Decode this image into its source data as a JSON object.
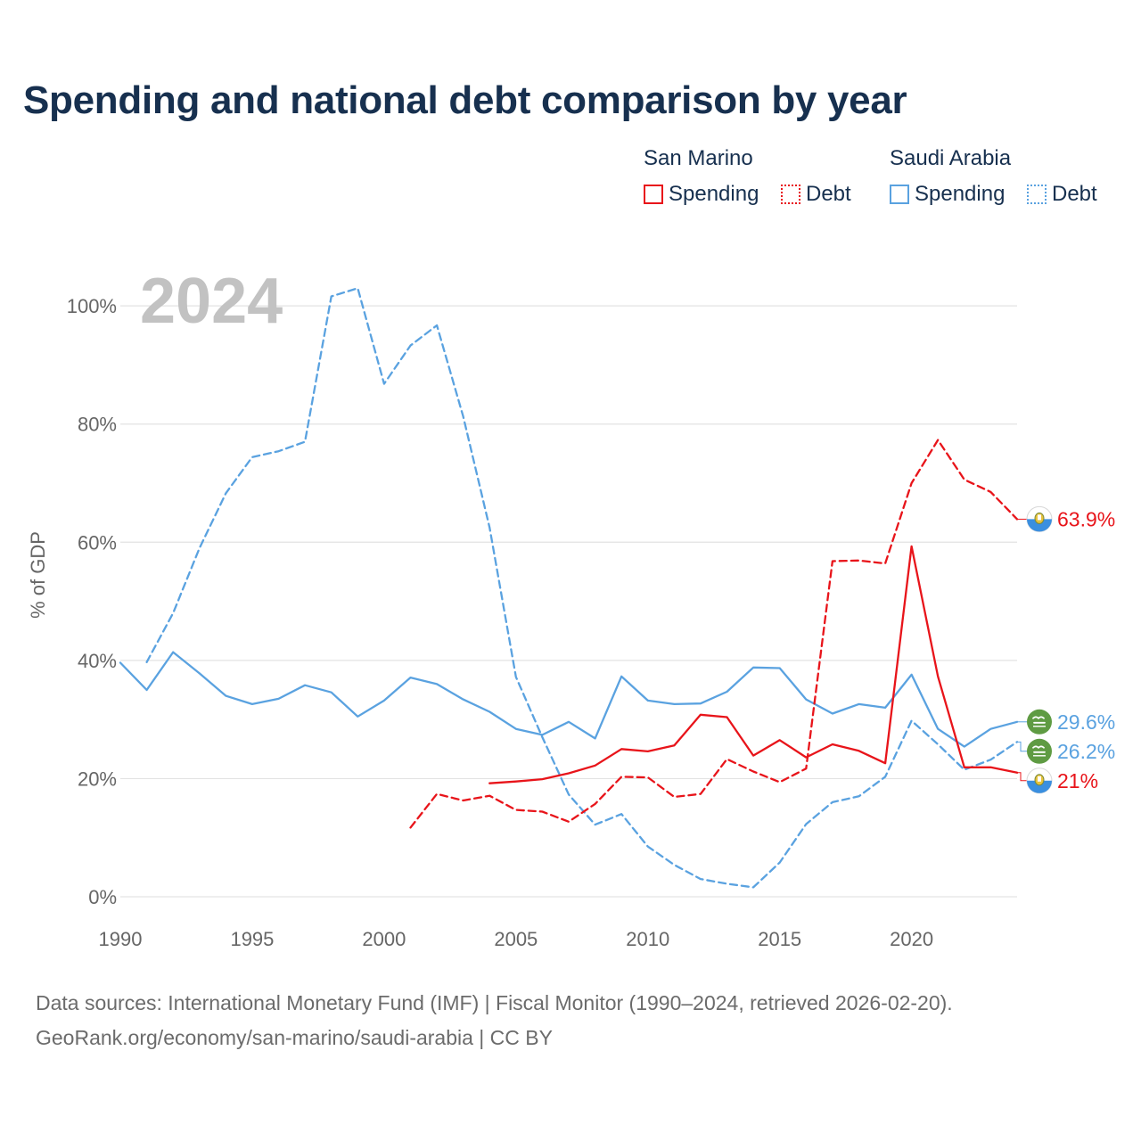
{
  "title": "Spending and national debt comparison by year",
  "legend": {
    "groups": [
      {
        "name": "San Marino",
        "items": [
          {
            "label": "Spending",
            "style": "solid",
            "color": "#e8141a"
          },
          {
            "label": "Debt",
            "style": "dotted",
            "color": "#e8141a"
          }
        ]
      },
      {
        "name": "Saudi Arabia",
        "items": [
          {
            "label": "Spending",
            "style": "solid",
            "color": "#5aa2e0"
          },
          {
            "label": "Debt",
            "style": "dotted",
            "color": "#5aa2e0"
          }
        ]
      }
    ]
  },
  "chart_data": {
    "type": "line",
    "year_label": "2024",
    "ylabel": "% of GDP",
    "xlim": [
      1990,
      2024
    ],
    "ylim": [
      0,
      105
    ],
    "y_ticks": [
      0,
      20,
      40,
      60,
      80,
      100
    ],
    "y_tick_labels": [
      "0%",
      "20%",
      "40%",
      "60%",
      "80%",
      "100%"
    ],
    "x_ticks": [
      1990,
      1995,
      2000,
      2005,
      2010,
      2015,
      2020
    ],
    "x_tick_labels": [
      "1990",
      "1995",
      "2000",
      "2005",
      "2010",
      "2015",
      "2020"
    ],
    "grid": true,
    "colors": {
      "san_marino": "#e8141a",
      "saudi_arabia": "#5aa2e0"
    },
    "series": [
      {
        "name": "Saudi Arabia Debt",
        "country": "Saudi Arabia",
        "measure": "Debt",
        "dash": true,
        "color": "#5aa2e0",
        "x": [
          1991,
          1992,
          1993,
          1994,
          1995,
          1996,
          1997,
          1998,
          1999,
          2000,
          2001,
          2002,
          2003,
          2004,
          2005,
          2006,
          2007,
          2008,
          2009,
          2010,
          2011,
          2012,
          2013,
          2014,
          2015,
          2016,
          2017,
          2018,
          2019,
          2020,
          2021,
          2022,
          2023,
          2024
        ],
        "values": [
          39.7,
          48,
          59,
          68.3,
          74.4,
          75.4,
          77,
          101.6,
          103,
          86.8,
          93.3,
          96.7,
          81.3,
          62.5,
          37.2,
          27,
          17.3,
          12.2,
          14,
          8.5,
          5.4,
          3,
          2.2,
          1.6,
          5.8,
          12.3,
          16,
          17,
          20.3,
          29.8,
          25.8,
          21.5,
          23.2,
          26.2
        ],
        "end_label": "26.2%"
      },
      {
        "name": "Saudi Arabia Spending",
        "country": "Saudi Arabia",
        "measure": "Spending",
        "dash": false,
        "color": "#5aa2e0",
        "x": [
          1990,
          1991,
          1992,
          1993,
          1994,
          1995,
          1996,
          1997,
          1998,
          1999,
          2000,
          2001,
          2002,
          2003,
          2004,
          2005,
          2006,
          2007,
          2008,
          2009,
          2010,
          2011,
          2012,
          2013,
          2014,
          2015,
          2016,
          2017,
          2018,
          2019,
          2020,
          2021,
          2022,
          2023,
          2024
        ],
        "values": [
          39.6,
          35,
          41.4,
          37.8,
          34,
          32.6,
          33.5,
          35.8,
          34.6,
          30.5,
          33.2,
          37.1,
          36,
          33.4,
          31.3,
          28.4,
          27.4,
          29.6,
          26.8,
          37.3,
          33.2,
          32.6,
          32.7,
          34.7,
          38.8,
          38.7,
          33.4,
          31,
          32.6,
          32,
          37.6,
          28.4,
          25.4,
          28.4,
          29.6
        ],
        "end_label": "29.6%"
      },
      {
        "name": "San Marino Debt",
        "country": "San Marino",
        "measure": "Debt",
        "dash": true,
        "color": "#e8141a",
        "x": [
          2001,
          2002,
          2003,
          2004,
          2005,
          2006,
          2007,
          2008,
          2009,
          2010,
          2011,
          2012,
          2013,
          2014,
          2015,
          2016,
          2017,
          2018,
          2019,
          2020,
          2021,
          2022,
          2023,
          2024
        ],
        "values": [
          11.7,
          17.4,
          16.3,
          17.1,
          14.7,
          14.4,
          12.7,
          15.7,
          20.3,
          20.2,
          16.9,
          17.4,
          23.3,
          21.2,
          19.4,
          21.7,
          56.8,
          56.9,
          56.4,
          70,
          77.3,
          70.6,
          68.5,
          63.9
        ],
        "end_label": "63.9%"
      },
      {
        "name": "San Marino Spending",
        "country": "San Marino",
        "measure": "Spending",
        "dash": false,
        "color": "#e8141a",
        "x": [
          2004,
          2005,
          2006,
          2007,
          2008,
          2009,
          2010,
          2011,
          2012,
          2013,
          2014,
          2015,
          2016,
          2017,
          2018,
          2019,
          2020,
          2021,
          2022,
          2023,
          2024
        ],
        "values": [
          19.2,
          19.5,
          19.9,
          20.9,
          22.2,
          25,
          24.6,
          25.6,
          30.8,
          30.4,
          23.9,
          26.5,
          23.6,
          25.8,
          24.7,
          22.6,
          59.3,
          37.3,
          21.9,
          21.9,
          21
        ],
        "end_label": "21%"
      }
    ]
  },
  "footer": {
    "line1": "Data sources: International Monetary Fund (IMF) | Fiscal Monitor (1990–2024, retrieved 2026-02-20).",
    "line2": "GeoRank.org/economy/san-marino/saudi-arabia | CC BY"
  }
}
